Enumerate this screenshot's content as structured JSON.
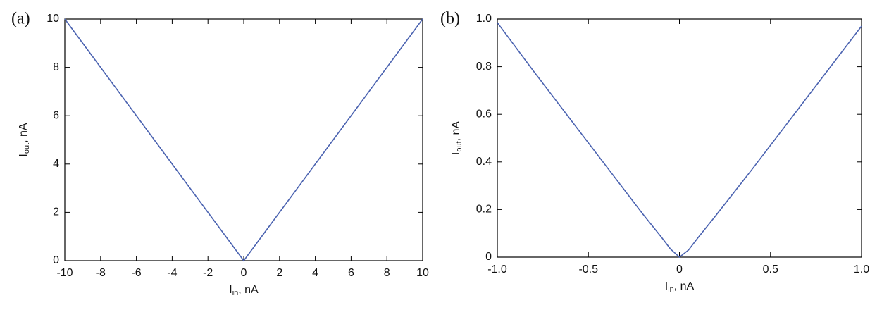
{
  "chart_data": [
    {
      "type": "line",
      "panel_label": "(a)",
      "x_label": [
        "I",
        "in",
        ", nA"
      ],
      "y_label": [
        "I",
        "out",
        ", nA"
      ],
      "xlim": [
        -10,
        10
      ],
      "xticks": [
        -10,
        -8,
        -6,
        -4,
        -2,
        0,
        2,
        4,
        6,
        8,
        10
      ],
      "ylim": [
        0,
        10
      ],
      "yticks": [
        0,
        2,
        4,
        6,
        8,
        10
      ],
      "x": [
        -10,
        0,
        10
      ],
      "values": [
        10,
        0,
        10
      ],
      "color": "#4a62b0"
    },
    {
      "type": "line",
      "panel_label": "(b)",
      "x_label": [
        "I",
        "in",
        ", nA"
      ],
      "y_label": [
        "I",
        "out",
        ", nA"
      ],
      "xlim": [
        -1,
        1
      ],
      "xticks": [
        {
          "value": -1,
          "label": "-1.0"
        },
        -0.5,
        0,
        0.5,
        {
          "value": 1,
          "label": "1.0"
        }
      ],
      "ylim": [
        0,
        1
      ],
      "yticks": [
        0,
        0.2,
        0.4,
        0.6,
        0.8,
        {
          "value": 1,
          "label": "1.0"
        }
      ],
      "x": [
        -1,
        -0.8,
        -0.6,
        -0.4,
        -0.2,
        -0.1,
        -0.05,
        0,
        0.05,
        0.1,
        0.2,
        0.4,
        0.6,
        0.8,
        1
      ],
      "values": [
        0.985,
        0.78,
        0.58,
        0.38,
        0.18,
        0.085,
        0.035,
        0,
        0.03,
        0.08,
        0.175,
        0.37,
        0.57,
        0.77,
        0.97
      ],
      "color": "#4a62b0"
    }
  ]
}
